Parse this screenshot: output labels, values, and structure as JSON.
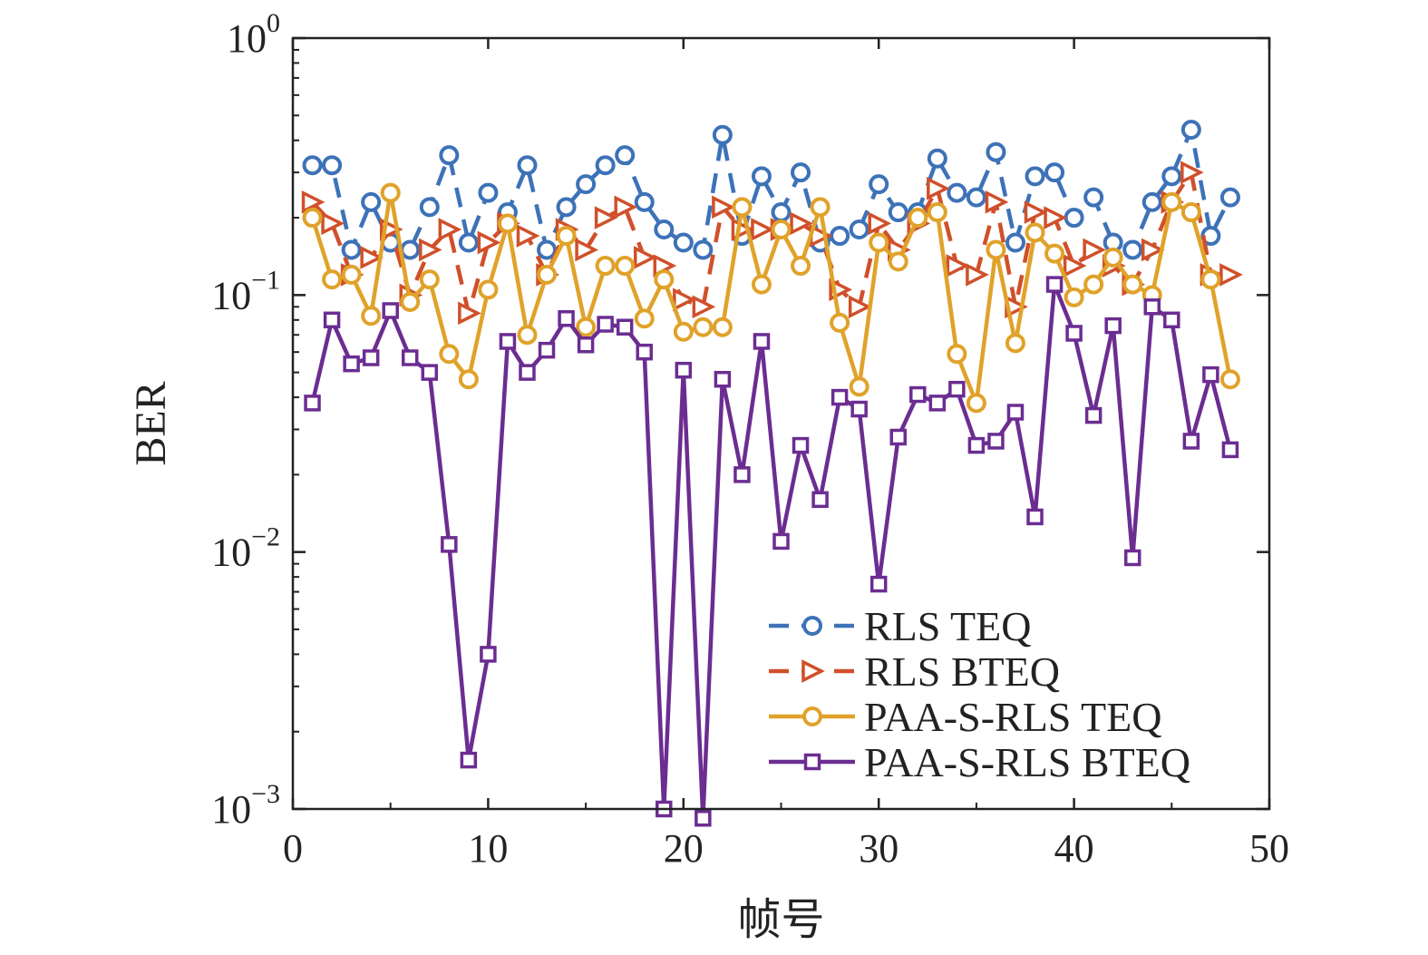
{
  "chart_data": {
    "type": "line",
    "title": "",
    "xlabel": "帧号",
    "ylabel": "BER",
    "xlim": [
      0,
      50
    ],
    "ylim": [
      0.001,
      1
    ],
    "yscale": "log",
    "grid": false,
    "legend_position": "bottom-right",
    "xticks": [
      0,
      10,
      20,
      30,
      40,
      50
    ],
    "xtick_labels": [
      "0",
      "10",
      "20",
      "30",
      "40",
      "50"
    ],
    "yticks": [
      0.001,
      0.01,
      0.1,
      1
    ],
    "ytick_bases": [
      "10",
      "10",
      "10",
      "10"
    ],
    "ytick_exponents": [
      "−3",
      "−2",
      "−1",
      "0"
    ],
    "x": [
      1,
      2,
      3,
      4,
      5,
      6,
      7,
      8,
      9,
      10,
      11,
      12,
      13,
      14,
      15,
      16,
      17,
      18,
      19,
      20,
      21,
      22,
      23,
      24,
      25,
      26,
      27,
      28,
      29,
      30,
      31,
      32,
      33,
      34,
      35,
      36,
      37,
      38,
      39,
      40,
      41,
      42,
      43,
      44,
      45,
      46,
      47,
      48
    ],
    "series": [
      {
        "name": "RLS TEQ",
        "color": "#3d72b8",
        "marker": "circle",
        "line_style": "dashed",
        "values": [
          0.32,
          0.32,
          0.15,
          0.23,
          0.16,
          0.15,
          0.22,
          0.35,
          0.16,
          0.25,
          0.21,
          0.32,
          0.15,
          0.22,
          0.27,
          0.32,
          0.35,
          0.23,
          0.18,
          0.16,
          0.15,
          0.42,
          0.17,
          0.29,
          0.21,
          0.3,
          0.16,
          0.17,
          0.18,
          0.27,
          0.21,
          0.21,
          0.34,
          0.25,
          0.24,
          0.36,
          0.16,
          0.29,
          0.3,
          0.2,
          0.24,
          0.16,
          0.15,
          0.23,
          0.29,
          0.44,
          0.17,
          0.24
        ]
      },
      {
        "name": "RLS BTEQ",
        "color": "#d0502a",
        "marker": "triangle-right",
        "line_style": "dashed",
        "values": [
          0.23,
          0.19,
          0.12,
          0.14,
          0.18,
          0.1,
          0.15,
          0.18,
          0.085,
          0.16,
          0.19,
          0.17,
          0.12,
          0.18,
          0.15,
          0.2,
          0.22,
          0.14,
          0.13,
          0.096,
          0.09,
          0.22,
          0.18,
          0.18,
          0.18,
          0.19,
          0.17,
          0.105,
          0.09,
          0.19,
          0.15,
          0.19,
          0.26,
          0.13,
          0.12,
          0.23,
          0.09,
          0.21,
          0.2,
          0.13,
          0.15,
          0.13,
          0.11,
          0.15,
          0.23,
          0.3,
          0.12,
          0.12
        ]
      },
      {
        "name": "PAA-S-RLS TEQ",
        "color": "#e0a22a",
        "marker": "circle",
        "line_style": "solid",
        "values": [
          0.2,
          0.115,
          0.12,
          0.083,
          0.25,
          0.094,
          0.115,
          0.059,
          0.047,
          0.105,
          0.19,
          0.07,
          0.12,
          0.17,
          0.075,
          0.13,
          0.13,
          0.081,
          0.115,
          0.072,
          0.075,
          0.075,
          0.22,
          0.11,
          0.18,
          0.13,
          0.22,
          0.078,
          0.044,
          0.16,
          0.135,
          0.2,
          0.21,
          0.059,
          0.038,
          0.15,
          0.065,
          0.175,
          0.145,
          0.098,
          0.11,
          0.14,
          0.11,
          0.1,
          0.23,
          0.21,
          0.115,
          0.047
        ]
      },
      {
        "name": "PAA-S-RLS BTEQ",
        "color": "#6b2d91",
        "marker": "square",
        "line_style": "solid",
        "values": [
          0.038,
          0.08,
          0.054,
          0.057,
          0.087,
          0.057,
          0.05,
          0.0107,
          0.00155,
          0.004,
          0.066,
          0.05,
          0.061,
          0.081,
          0.064,
          0.077,
          0.075,
          0.06,
          0.001,
          0.051,
          0.00092,
          0.047,
          0.02,
          0.066,
          0.011,
          0.026,
          0.016,
          0.04,
          0.036,
          0.0075,
          0.028,
          0.041,
          0.038,
          0.043,
          0.026,
          0.027,
          0.035,
          0.0137,
          0.11,
          0.071,
          0.034,
          0.076,
          0.0095,
          0.09,
          0.08,
          0.027,
          0.049,
          0.025
        ]
      }
    ]
  }
}
